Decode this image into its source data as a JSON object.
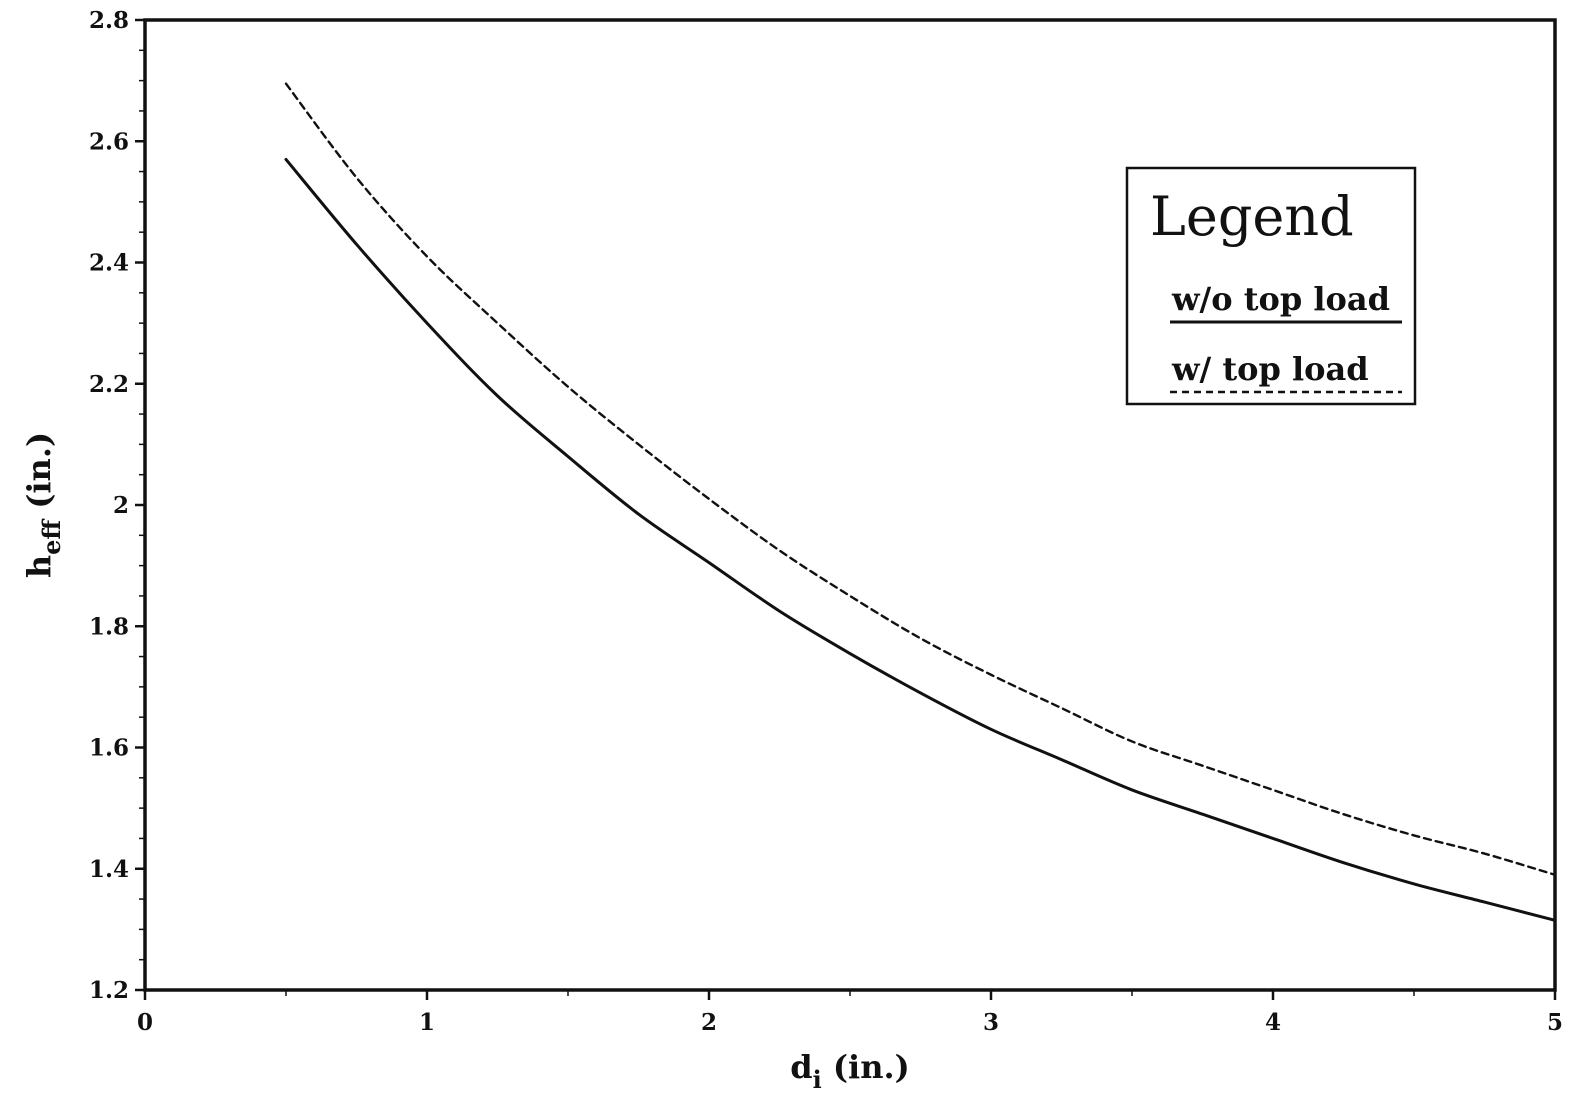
{
  "chart_data": {
    "type": "line",
    "xlabel": {
      "base": "d",
      "sub": "i",
      "suffix": " (in.)"
    },
    "ylabel": {
      "base": "h",
      "sub": "eff",
      "suffix": " (in.)"
    },
    "xlim": [
      0,
      5
    ],
    "ylim": [
      1.2,
      2.8
    ],
    "xticks": [
      0,
      1,
      2,
      3,
      4,
      5
    ],
    "xtick_labels": [
      "0",
      "1",
      "2",
      "3",
      "4",
      "5"
    ],
    "yticks": [
      1.2,
      1.4,
      1.6,
      1.8,
      2.0,
      2.2,
      2.4,
      2.6,
      2.8
    ],
    "ytick_labels": [
      "1.2",
      "1.4",
      "1.6",
      "1.8",
      "2",
      "2.2",
      "2.4",
      "2.6",
      "2.8"
    ],
    "grid": false,
    "legend": {
      "title": "Legend",
      "position": "top-right"
    },
    "series": [
      {
        "name": "w/o top load",
        "style": "solid",
        "color": "#111111",
        "x": [
          0.5,
          0.75,
          1.0,
          1.25,
          1.5,
          1.75,
          2.0,
          2.25,
          2.5,
          2.75,
          3.0,
          3.25,
          3.5,
          3.75,
          4.0,
          4.25,
          4.5,
          4.75,
          5.0
        ],
        "y": [
          2.57,
          2.43,
          2.3,
          2.18,
          2.08,
          1.985,
          1.905,
          1.825,
          1.755,
          1.69,
          1.63,
          1.58,
          1.53,
          1.49,
          1.45,
          1.41,
          1.375,
          1.345,
          1.315
        ]
      },
      {
        "name": "w/ top load",
        "style": "dashed",
        "color": "#111111",
        "x": [
          0.5,
          0.75,
          1.0,
          1.25,
          1.5,
          1.75,
          2.0,
          2.25,
          2.5,
          2.75,
          3.0,
          3.25,
          3.5,
          3.75,
          4.0,
          4.25,
          4.5,
          4.75,
          5.0
        ],
        "y": [
          2.695,
          2.54,
          2.41,
          2.3,
          2.195,
          2.1,
          2.01,
          1.925,
          1.85,
          1.78,
          1.72,
          1.665,
          1.61,
          1.57,
          1.53,
          1.49,
          1.455,
          1.425,
          1.39
        ]
      }
    ]
  }
}
